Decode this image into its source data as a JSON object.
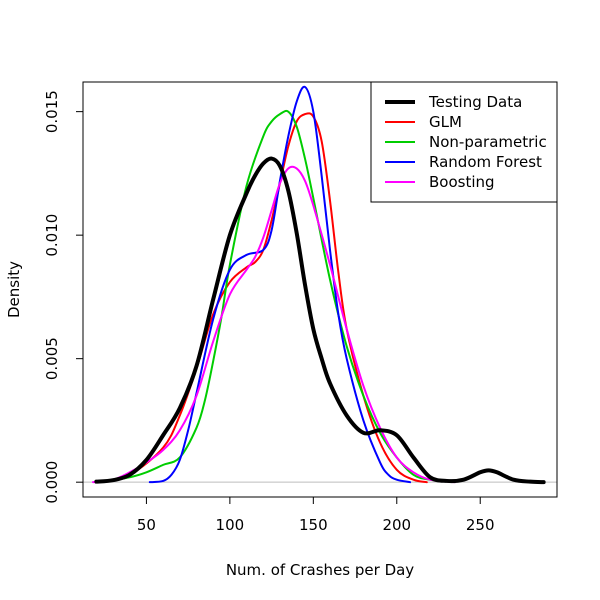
{
  "chart_data": {
    "type": "line",
    "title": "",
    "xlabel": "Num. of Crashes per Day",
    "ylabel": "Density",
    "xlim": [
      12,
      296
    ],
    "ylim": [
      -0.0006,
      0.0162
    ],
    "x_ticks": [
      50,
      100,
      150,
      200,
      250
    ],
    "x_tick_labels": [
      "50",
      "100",
      "150",
      "200",
      "250"
    ],
    "y_ticks": [
      0,
      0.005,
      0.01,
      0.015
    ],
    "y_tick_labels": [
      "0.000",
      "0.005",
      "0.010",
      "0.015"
    ],
    "baseline": 0,
    "baseline_color": "#bebebe",
    "grid": false,
    "legend_position": "top-right",
    "series": [
      {
        "name": "Testing Data",
        "color": "#000000",
        "width": 4,
        "x": [
          20,
          30,
          40,
          50,
          60,
          70,
          80,
          90,
          100,
          110,
          115,
          120,
          125,
          130,
          135,
          140,
          145,
          150,
          155,
          160,
          170,
          180,
          190,
          200,
          210,
          220,
          230,
          240,
          250,
          255,
          260,
          270,
          280,
          288
        ],
        "y": [
          2e-05,
          8e-05,
          0.0003,
          0.0009,
          0.0019,
          0.003,
          0.0047,
          0.0074,
          0.01,
          0.0117,
          0.0124,
          0.0129,
          0.0131,
          0.0128,
          0.0118,
          0.0101,
          0.008,
          0.0062,
          0.005,
          0.004,
          0.0027,
          0.002,
          0.0021,
          0.0019,
          0.001,
          0.0002,
          5e-05,
          0.0001,
          0.0004,
          0.00048,
          0.0004,
          0.0001,
          2e-05,
          0.0
        ]
      },
      {
        "name": "GLM",
        "color": "#ff0000",
        "width": 2,
        "x": [
          22,
          40,
          60,
          70,
          80,
          90,
          100,
          110,
          115,
          120,
          125,
          130,
          135,
          140,
          145,
          150,
          155,
          160,
          165,
          170,
          180,
          190,
          200,
          210,
          218
        ],
        "y": [
          2e-05,
          0.0003,
          0.0014,
          0.0027,
          0.0046,
          0.0068,
          0.0081,
          0.0087,
          0.0089,
          0.0094,
          0.0106,
          0.0121,
          0.0136,
          0.0146,
          0.0149,
          0.0148,
          0.0138,
          0.0114,
          0.0085,
          0.0062,
          0.0035,
          0.0016,
          0.0005,
          0.0001,
          0.0
        ]
      },
      {
        "name": "Non-parametric",
        "color": "#00cd00",
        "width": 2,
        "x": [
          22,
          40,
          50,
          60,
          70,
          80,
          85,
          90,
          95,
          100,
          110,
          120,
          125,
          130,
          135,
          140,
          145,
          150,
          160,
          170,
          180,
          190,
          200,
          210,
          220,
          235
        ],
        "y": [
          0.0,
          0.0002,
          0.0004,
          0.0007,
          0.001,
          0.0022,
          0.0033,
          0.0049,
          0.0067,
          0.0088,
          0.012,
          0.014,
          0.0146,
          0.0149,
          0.015,
          0.0144,
          0.0131,
          0.0115,
          0.0082,
          0.0055,
          0.0035,
          0.002,
          0.001,
          0.0003,
          0.0001,
          0.0
        ]
      },
      {
        "name": "Random Forest",
        "color": "#0000ff",
        "width": 2,
        "x": [
          52,
          60,
          65,
          70,
          75,
          80,
          90,
          100,
          110,
          120,
          125,
          130,
          135,
          140,
          145,
          150,
          155,
          160,
          165,
          170,
          180,
          190,
          195,
          200,
          208
        ],
        "y": [
          0.0,
          5e-05,
          0.0003,
          0.0009,
          0.0021,
          0.0036,
          0.0066,
          0.0086,
          0.0092,
          0.0094,
          0.0102,
          0.0122,
          0.014,
          0.0154,
          0.016,
          0.015,
          0.0124,
          0.0094,
          0.0068,
          0.005,
          0.0025,
          0.0008,
          0.0003,
          0.0001,
          0.0
        ]
      },
      {
        "name": "Boosting",
        "color": "#ff00ff",
        "width": 2,
        "x": [
          18,
          30,
          40,
          50,
          60,
          70,
          80,
          90,
          100,
          110,
          115,
          120,
          125,
          130,
          135,
          140,
          145,
          150,
          160,
          170,
          180,
          190,
          200,
          210,
          220,
          235
        ],
        "y": [
          0.0,
          0.0001,
          0.0004,
          0.0008,
          0.0013,
          0.0021,
          0.0035,
          0.0057,
          0.0076,
          0.0086,
          0.0091,
          0.0099,
          0.011,
          0.0121,
          0.0127,
          0.0127,
          0.0122,
          0.0112,
          0.0088,
          0.0062,
          0.0039,
          0.0022,
          0.001,
          0.0004,
          0.0001,
          0.0
        ]
      }
    ]
  }
}
